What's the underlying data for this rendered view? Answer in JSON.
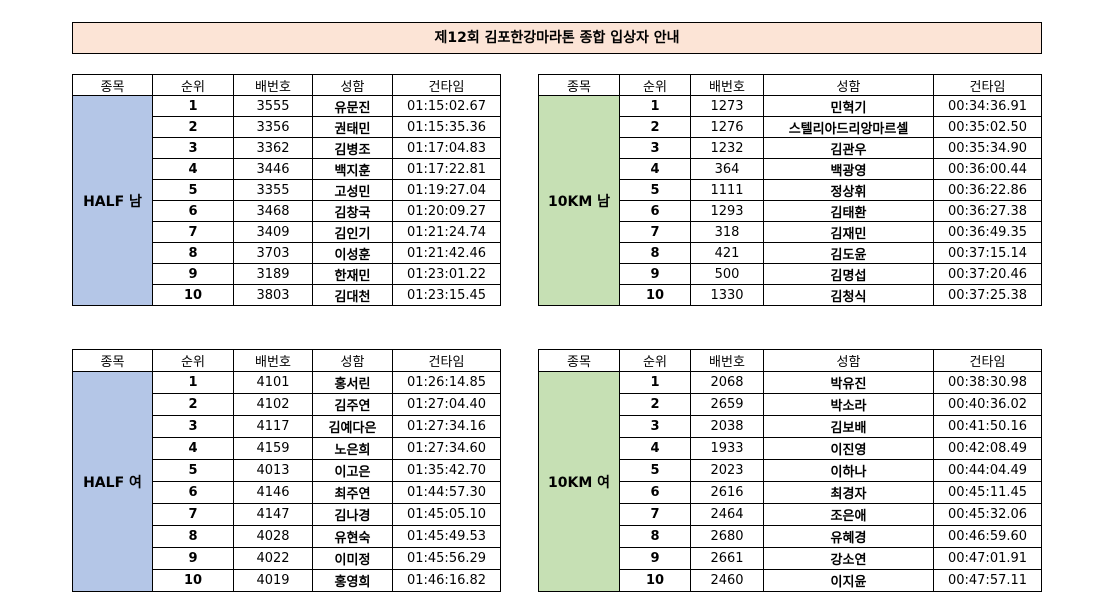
{
  "title": "제12회 김포한강마라톤 종합 입상자 안내",
  "tables": [
    {
      "header": [
        "종목",
        "순위",
        "배번호",
        "성함",
        "건타임"
      ],
      "category": "HALF 남",
      "color": "#b4c6e7",
      "rows": [
        [
          1,
          3555,
          "유문진",
          "01:15:02.67"
        ],
        [
          2,
          3356,
          "권태민",
          "01:15:35.36"
        ],
        [
          3,
          3362,
          "김병조",
          "01:17:04.83"
        ],
        [
          4,
          3446,
          "백지훈",
          "01:17:22.81"
        ],
        [
          5,
          3355,
          "고성민",
          "01:19:27.04"
        ],
        [
          6,
          3468,
          "김창국",
          "01:20:09.27"
        ],
        [
          7,
          3409,
          "김인기",
          "01:21:24.74"
        ],
        [
          8,
          3703,
          "이성훈",
          "01:21:42.46"
        ],
        [
          9,
          3189,
          "한재민",
          "01:23:01.22"
        ],
        [
          10,
          3803,
          "김대천",
          "01:23:15.45"
        ]
      ]
    },
    {
      "header": [
        "종목",
        "순위",
        "배번호",
        "성함",
        "건타임"
      ],
      "category": "10KM 남",
      "color": "#c6e0b4",
      "rows": [
        [
          1,
          1273,
          "민혁기",
          "00:34:36.91"
        ],
        [
          2,
          1276,
          "스텔리아드리앙마르셀",
          "00:35:02.50"
        ],
        [
          3,
          1232,
          "김관우",
          "00:35:34.90"
        ],
        [
          4,
          364,
          "백광영",
          "00:36:00.44"
        ],
        [
          5,
          1111,
          "정상휘",
          "00:36:22.86"
        ],
        [
          6,
          1293,
          "김태환",
          "00:36:27.38"
        ],
        [
          7,
          318,
          "김재민",
          "00:36:49.35"
        ],
        [
          8,
          421,
          "김도윤",
          "00:37:15.14"
        ],
        [
          9,
          500,
          "김명섭",
          "00:37:20.46"
        ],
        [
          10,
          1330,
          "김청식",
          "00:37:25.38"
        ]
      ]
    },
    {
      "header": [
        "종목",
        "순위",
        "배번호",
        "성함",
        "건타임"
      ],
      "category": "HALF 여",
      "color": "#b4c6e7",
      "rows": [
        [
          1,
          4101,
          "홍서린",
          "01:26:14.85"
        ],
        [
          2,
          4102,
          "김주연",
          "01:27:04.40"
        ],
        [
          3,
          4117,
          "김예다은",
          "01:27:34.16"
        ],
        [
          4,
          4159,
          "노은희",
          "01:27:34.60"
        ],
        [
          5,
          4013,
          "이고은",
          "01:35:42.70"
        ],
        [
          6,
          4146,
          "최주연",
          "01:44:57.30"
        ],
        [
          7,
          4147,
          "김나경",
          "01:45:05.10"
        ],
        [
          8,
          4028,
          "유현숙",
          "01:45:49.53"
        ],
        [
          9,
          4022,
          "이미정",
          "01:45:56.29"
        ],
        [
          10,
          4019,
          "홍영희",
          "01:46:16.82"
        ]
      ]
    },
    {
      "header": [
        "종목",
        "순위",
        "배번호",
        "성함",
        "건타임"
      ],
      "category": "10KM 여",
      "color": "#c6e0b4",
      "rows": [
        [
          1,
          2068,
          "박유진",
          "00:38:30.98"
        ],
        [
          2,
          2659,
          "박소라",
          "00:40:36.02"
        ],
        [
          3,
          2038,
          "김보배",
          "00:41:50.16"
        ],
        [
          4,
          1933,
          "이진영",
          "00:42:08.49"
        ],
        [
          5,
          2023,
          "이하나",
          "00:44:04.49"
        ],
        [
          6,
          2616,
          "최경자",
          "00:45:11.45"
        ],
        [
          7,
          2464,
          "조은애",
          "00:45:32.06"
        ],
        [
          8,
          2680,
          "유혜경",
          "00:46:59.60"
        ],
        [
          9,
          2661,
          "강소연",
          "00:47:01.91"
        ],
        [
          10,
          2460,
          "이지윤",
          "00:47:57.11"
        ]
      ]
    }
  ]
}
